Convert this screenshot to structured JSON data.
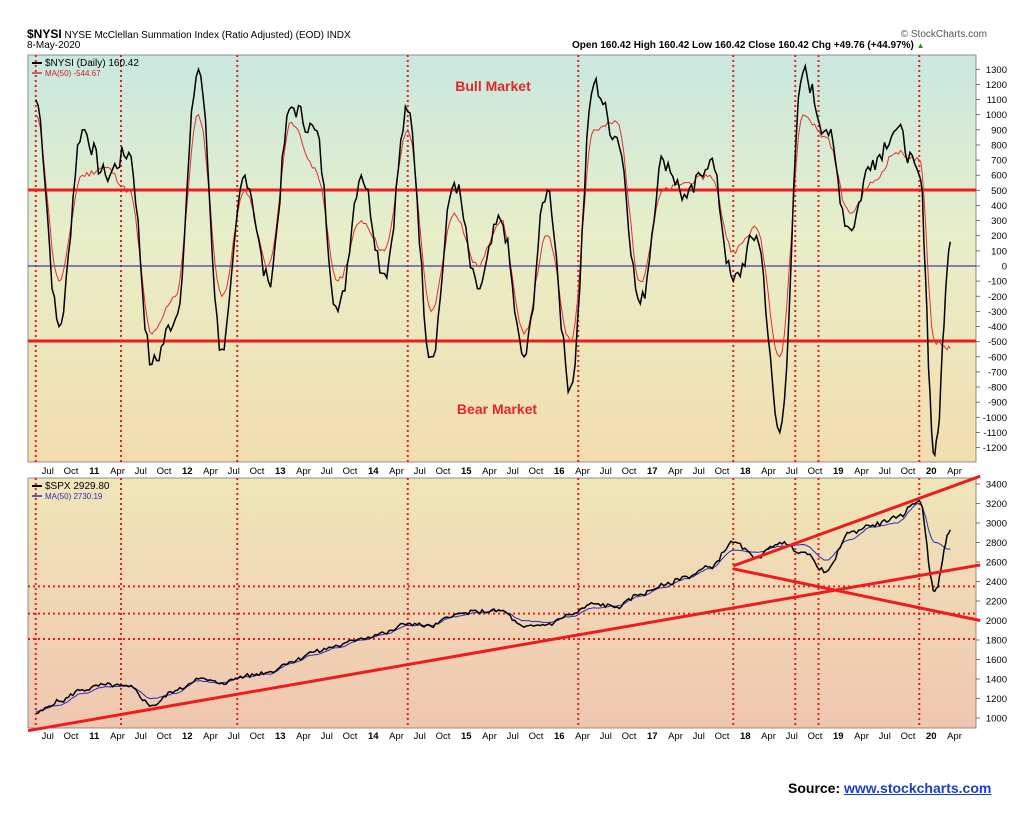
{
  "header": {
    "symbol": "$NYSI",
    "title": "NYSE McClellan Summation Index (Ratio Adjusted) (EOD)",
    "exchange": "INDX",
    "date": "8-May-2020",
    "watermark": "© StockCharts.com",
    "ohlc": "Open 160.42  High 160.42  Low 160.42  Close 160.42  Chg +49.76 (+44.97%)",
    "up_arrow": "▲"
  },
  "upper_legend": {
    "line1": "$NYSI (Daily) 160.42",
    "line2": "MA(50) -544.67"
  },
  "lower_legend": {
    "line1": "$SPX 2929.80",
    "line2": "MA(50) 2730.19"
  },
  "annotations": {
    "bull": "Bull Market",
    "bear": "Bear Market"
  },
  "source": {
    "label": "Source:",
    "link": "www.stockcharts.com"
  },
  "colors": {
    "signal_red": "#ee1c1c",
    "ma_blue": "#2b2bbd",
    "line_black": "#000000",
    "upper_bg_top": "#c8e8e0",
    "upper_bg_bottom": "#f3e0b3",
    "lower_bg_top": "#f0e6b8",
    "lower_bg_bottom": "#f0c8b0"
  },
  "chart_data": [
    {
      "type": "line",
      "title": "$NYSI (Daily) 160.42",
      "ylim": [
        -1300,
        1400
      ],
      "yticks": [
        1300,
        1200,
        1100,
        1000,
        900,
        800,
        700,
        600,
        500,
        400,
        300,
        200,
        100,
        0,
        -100,
        -200,
        -300,
        -400,
        -500,
        -600,
        -700,
        -800,
        -900,
        -1000,
        -1100,
        -1200
      ],
      "horizontal_lines": [
        500,
        -500,
        0
      ],
      "x": [
        "2010-07",
        "2010-10",
        "2011-01",
        "2011-04",
        "2011-07",
        "2011-10",
        "2012-01",
        "2012-04",
        "2012-07",
        "2012-10",
        "2013-01",
        "2013-04",
        "2013-07",
        "2013-10",
        "2014-01",
        "2014-04",
        "2014-07",
        "2014-10",
        "2015-01",
        "2015-04",
        "2015-07",
        "2015-10",
        "2016-01",
        "2016-04",
        "2016-07",
        "2016-10",
        "2017-01",
        "2017-04",
        "2017-07",
        "2017-10",
        "2018-01",
        "2018-04",
        "2018-07",
        "2018-10",
        "2019-01",
        "2019-04",
        "2019-07",
        "2019-10",
        "2020-01",
        "2020-03",
        "2020-05"
      ],
      "series": [
        {
          "name": "$NYSI",
          "values": [
            1100,
            -400,
            900,
            600,
            750,
            -650,
            -350,
            1300,
            -550,
            600,
            -100,
            1050,
            900,
            -300,
            600,
            -50,
            1020,
            -600,
            550,
            -150,
            300,
            -600,
            500,
            -800,
            1200,
            850,
            -250,
            700,
            450,
            700,
            -100,
            200,
            -1100,
            1280,
            900,
            250,
            700,
            900,
            600,
            -1250,
            160
          ]
        },
        {
          "name": "MA(50)",
          "values": [
            1000,
            -100,
            600,
            650,
            500,
            -450,
            -200,
            1000,
            -200,
            500,
            0,
            950,
            650,
            -100,
            300,
            100,
            900,
            -300,
            350,
            0,
            300,
            -450,
            200,
            -500,
            900,
            950,
            -100,
            500,
            550,
            600,
            100,
            250,
            -600,
            1000,
            850,
            350,
            550,
            750,
            700,
            -500,
            -545
          ]
        }
      ]
    },
    {
      "type": "line",
      "title": "$SPX 2929.80",
      "ylim": [
        900,
        3500
      ],
      "yticks": [
        3400,
        3200,
        3000,
        2800,
        2600,
        2400,
        2200,
        2000,
        1800,
        1600,
        1400,
        1200,
        1000
      ],
      "horizontal_lines": [
        2350,
        2070,
        1810
      ],
      "x": [
        "2010-07",
        "2010-10",
        "2011-01",
        "2011-04",
        "2011-07",
        "2011-10",
        "2012-01",
        "2012-04",
        "2012-07",
        "2012-10",
        "2013-01",
        "2013-04",
        "2013-07",
        "2013-10",
        "2014-01",
        "2014-04",
        "2014-07",
        "2014-10",
        "2015-01",
        "2015-04",
        "2015-07",
        "2015-10",
        "2016-01",
        "2016-04",
        "2016-07",
        "2016-10",
        "2017-01",
        "2017-04",
        "2017-07",
        "2017-10",
        "2018-01",
        "2018-04",
        "2018-07",
        "2018-10",
        "2019-01",
        "2019-04",
        "2019-07",
        "2019-10",
        "2020-01",
        "2020-03",
        "2020-05"
      ],
      "series": [
        {
          "name": "$SPX",
          "values": [
            1050,
            1170,
            1290,
            1340,
            1320,
            1130,
            1280,
            1400,
            1360,
            1430,
            1470,
            1580,
            1680,
            1740,
            1820,
            1870,
            1970,
            1940,
            2060,
            2090,
            2100,
            1930,
            1960,
            2060,
            2170,
            2140,
            2270,
            2360,
            2450,
            2550,
            2800,
            2650,
            2800,
            2700,
            2500,
            2900,
            2980,
            3050,
            3230,
            2300,
            2930
          ]
        },
        {
          "name": "MA(50)",
          "values": [
            1070,
            1130,
            1250,
            1320,
            1330,
            1200,
            1250,
            1380,
            1360,
            1420,
            1450,
            1560,
            1650,
            1720,
            1800,
            1860,
            1950,
            1950,
            2040,
            2080,
            2100,
            2000,
            1980,
            2040,
            2130,
            2150,
            2250,
            2340,
            2430,
            2530,
            2720,
            2700,
            2760,
            2780,
            2620,
            2830,
            2960,
            3000,
            3200,
            2800,
            2730
          ]
        }
      ],
      "trendlines": [
        {
          "from": [
            "2010-06",
            870
          ],
          "to": [
            "2020-05",
            2570
          ]
        },
        {
          "from": [
            "2018-01",
            2560
          ],
          "to": [
            "2020-05",
            3480
          ]
        },
        {
          "from": [
            "2018-01",
            2530
          ],
          "to": [
            "2020-05",
            2000
          ]
        }
      ]
    }
  ],
  "x_tick_labels": [
    "Jul",
    "Oct",
    "11",
    "Apr",
    "Jul",
    "Oct",
    "12",
    "Apr",
    "Jul",
    "Oct",
    "13",
    "Apr",
    "Jul",
    "Oct",
    "14",
    "Apr",
    "Jul",
    "Oct",
    "15",
    "Apr",
    "Jul",
    "Oct",
    "16",
    "Apr",
    "Jul",
    "Oct",
    "17",
    "Apr",
    "Jul",
    "Oct",
    "18",
    "Apr",
    "Jul",
    "Oct",
    "19",
    "Apr",
    "Jul",
    "Oct",
    "20",
    "Apr"
  ],
  "vertical_marker_dates": [
    "2010-07",
    "2011-06",
    "2012-09",
    "2014-07",
    "2016-05",
    "2018-01",
    "2018-09",
    "2018-12",
    "2020-01"
  ]
}
